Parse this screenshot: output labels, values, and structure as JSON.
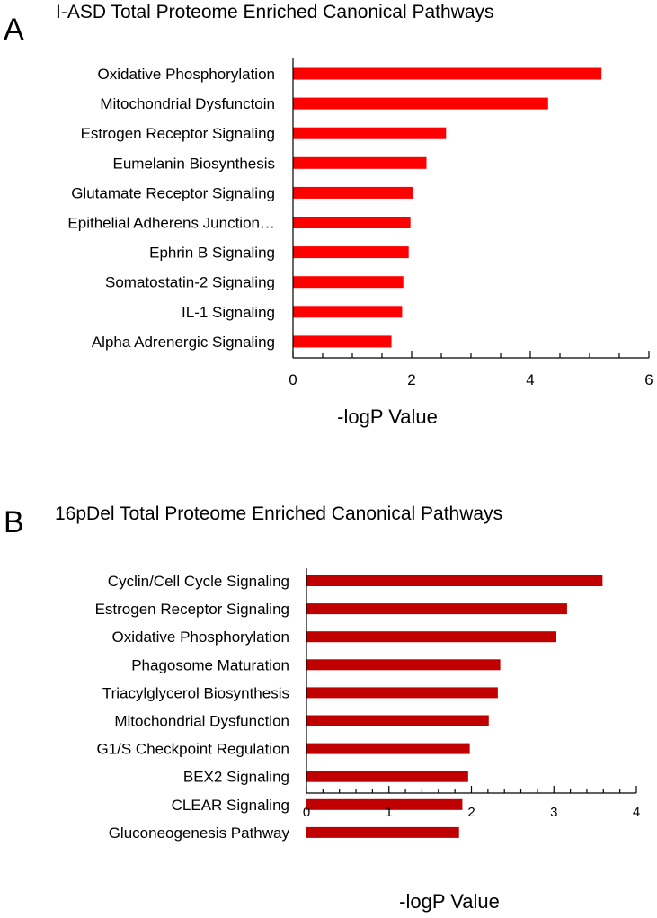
{
  "chart_data": [
    {
      "panel": "A",
      "type": "bar",
      "orientation": "horizontal",
      "title": "I-ASD Total Proteome Enriched Canonical Pathways",
      "xlabel": "-logP Value",
      "ylabel": "",
      "xlim": [
        0,
        6
      ],
      "xticks": [
        0,
        2,
        4,
        6
      ],
      "color": "#ff0000",
      "categories": [
        "Oxidative Phosphorylation",
        "Mitochondrial Dysfunctoin",
        "Estrogen Receptor Signaling",
        "Eumelanin Biosynthesis",
        "Glutamate Receptor Signaling",
        "Epithelial Adherens Junction…",
        "Ephrin B Signaling",
        "Somatostatin-2 Signaling",
        "IL-1 Signaling",
        "Alpha Adrenergic Signaling"
      ],
      "values": [
        5.2,
        4.3,
        2.58,
        2.25,
        2.03,
        1.98,
        1.95,
        1.86,
        1.84,
        1.66
      ]
    },
    {
      "panel": "B",
      "type": "bar",
      "orientation": "horizontal",
      "title": "16pDel Total Proteome Enriched Canonical Pathways",
      "xlabel": "-logP Value",
      "ylabel": "",
      "xlim": [
        0,
        4
      ],
      "xticks": [
        0,
        1,
        2,
        3,
        4
      ],
      "color": "#c00000",
      "categories": [
        "Cyclin/Cell Cycle Signaling",
        "Estrogen Receptor Signaling",
        "Oxidative Phosphorylation",
        "Phagosome Maturation",
        "Triacylglycerol Biosynthesis",
        "Mitochondrial Dysfunction",
        "G1/S Checkpoint Regulation",
        "BEX2 Signaling",
        "CLEAR Signaling",
        "Gluconeogenesis Pathway"
      ],
      "values": [
        3.59,
        3.16,
        3.03,
        2.35,
        2.32,
        2.21,
        1.98,
        1.96,
        1.89,
        1.85
      ]
    }
  ]
}
